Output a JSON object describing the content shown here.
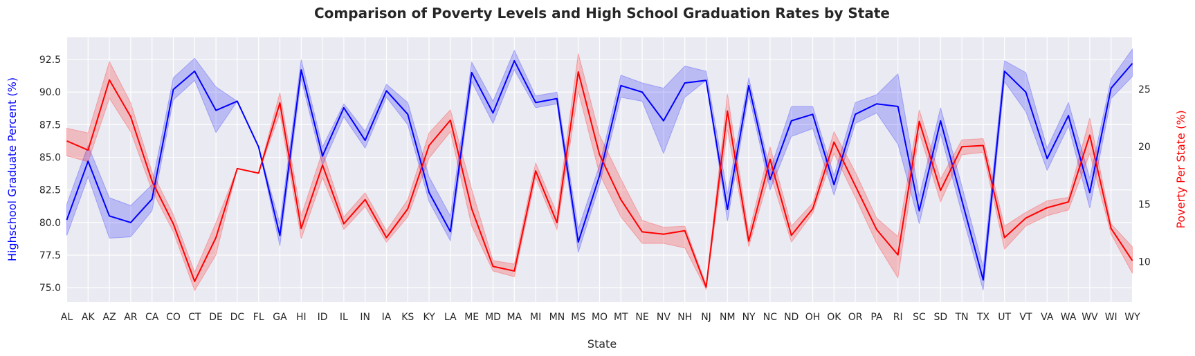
{
  "chart_data": {
    "type": "line",
    "title": "Comparison of Poverty Levels and High School Graduation Rates by State",
    "xlabel": "State",
    "ylabel_left": "Highschool Graduate Percent (%)",
    "ylabel_right": "Poverty Per State (%)",
    "ylim_left": [
      73.9,
      94.2
    ],
    "ylim_right": [
      6.5,
      29.5
    ],
    "yticks_left": [
      "75.0",
      "77.5",
      "80.0",
      "82.5",
      "85.0",
      "87.5",
      "90.0",
      "92.5"
    ],
    "yticks_right": [
      "10",
      "15",
      "20",
      "25"
    ],
    "grid": true,
    "categories": [
      "AL",
      "AK",
      "AZ",
      "AR",
      "CA",
      "CO",
      "CT",
      "DE",
      "DC",
      "FL",
      "GA",
      "HI",
      "ID",
      "IL",
      "IN",
      "IA",
      "KS",
      "KY",
      "LA",
      "ME",
      "MD",
      "MA",
      "MI",
      "MN",
      "MS",
      "MO",
      "MT",
      "NE",
      "NV",
      "NH",
      "NJ",
      "NM",
      "NY",
      "NC",
      "ND",
      "OH",
      "OK",
      "OR",
      "PA",
      "RI",
      "SC",
      "SD",
      "TN",
      "TX",
      "UT",
      "VT",
      "VA",
      "WA",
      "WV",
      "WI",
      "WY"
    ],
    "series": [
      {
        "name": "Highschool Graduate Percent (%)",
        "axis": "left",
        "color": "#0000ff",
        "values": [
          80.2,
          84.7,
          80.5,
          80.0,
          81.8,
          90.2,
          91.6,
          88.6,
          89.3,
          85.8,
          79.0,
          91.7,
          85.1,
          88.8,
          86.3,
          90.1,
          88.3,
          82.3,
          79.3,
          91.5,
          88.4,
          92.4,
          89.2,
          89.5,
          78.5,
          83.6,
          90.5,
          90.0,
          87.8,
          90.7,
          90.9,
          81.0,
          90.5,
          83.3,
          87.8,
          88.3,
          82.9,
          88.3,
          89.1,
          88.9,
          80.9,
          87.8,
          81.7,
          75.6,
          91.6,
          90.0,
          84.9,
          88.2,
          82.3,
          90.3,
          92.2
        ],
        "lower": [
          79.0,
          83.5,
          78.8,
          78.9,
          80.9,
          89.4,
          90.9,
          86.9,
          89.3,
          85.8,
          78.2,
          91.0,
          84.4,
          88.1,
          85.7,
          89.6,
          87.5,
          81.6,
          78.6,
          90.8,
          87.6,
          91.7,
          88.8,
          89.1,
          77.7,
          82.9,
          89.6,
          89.3,
          85.3,
          89.6,
          90.9,
          80.1,
          89.8,
          82.5,
          86.6,
          87.2,
          82.1,
          87.6,
          88.4,
          86.0,
          79.9,
          86.8,
          80.7,
          74.8,
          90.8,
          88.5,
          84.0,
          87.4,
          81.1,
          89.5,
          91.2
        ],
        "upper": [
          81.4,
          85.9,
          81.9,
          81.3,
          82.9,
          91.1,
          92.6,
          90.4,
          89.3,
          85.8,
          79.9,
          92.5,
          85.8,
          89.1,
          87.0,
          90.6,
          89.2,
          83.5,
          80.5,
          92.3,
          89.3,
          93.2,
          89.7,
          90.0,
          79.5,
          84.4,
          91.3,
          90.7,
          90.3,
          92.0,
          91.6,
          82.2,
          91.1,
          84.0,
          88.9,
          88.9,
          83.6,
          89.2,
          89.8,
          91.4,
          82.0,
          88.8,
          82.8,
          76.6,
          92.4,
          91.5,
          85.7,
          89.2,
          83.4,
          91.0,
          93.3
        ]
      },
      {
        "name": "Poverty Per State (%)",
        "axis": "right",
        "color": "#ff0000",
        "values": [
          20.5,
          19.7,
          25.8,
          22.6,
          17.0,
          13.3,
          8.3,
          12.1,
          18.1,
          17.7,
          23.8,
          12.9,
          18.4,
          13.3,
          15.4,
          12.1,
          14.6,
          20.1,
          22.3,
          14.6,
          9.6,
          9.2,
          17.9,
          13.4,
          26.5,
          19.3,
          15.4,
          12.6,
          12.4,
          12.7,
          7.8,
          23.1,
          11.8,
          18.9,
          12.3,
          14.6,
          20.4,
          16.6,
          12.8,
          10.6,
          22.2,
          16.2,
          20.0,
          20.1,
          12.1,
          13.8,
          14.7,
          15.2,
          21.0,
          12.9,
          10.1
        ],
        "lower": [
          19.2,
          18.7,
          24.2,
          21.3,
          16.2,
          12.6,
          7.5,
          10.6,
          18.1,
          17.7,
          22.9,
          12.0,
          17.3,
          12.8,
          14.8,
          11.7,
          13.9,
          19.0,
          21.3,
          13.1,
          9.2,
          8.7,
          17.3,
          12.8,
          24.8,
          17.6,
          13.9,
          11.6,
          11.6,
          11.2,
          7.6,
          21.5,
          11.3,
          17.7,
          11.7,
          14.2,
          19.4,
          15.6,
          11.6,
          8.6,
          21.2,
          15.2,
          19.3,
          19.5,
          11.1,
          13.1,
          14.0,
          14.5,
          19.4,
          12.4,
          9.0
        ],
        "upper": [
          21.6,
          21.2,
          27.4,
          23.8,
          17.8,
          14.1,
          9.1,
          13.4,
          18.1,
          17.7,
          24.7,
          14.0,
          19.6,
          13.9,
          16.0,
          12.7,
          15.4,
          21.2,
          23.2,
          16.3,
          10.1,
          9.8,
          18.6,
          14.2,
          28.1,
          21.0,
          17.2,
          13.6,
          13.0,
          13.1,
          8.0,
          24.6,
          12.5,
          20.0,
          13.1,
          15.1,
          21.3,
          17.8,
          13.8,
          12.2,
          23.2,
          17.2,
          20.6,
          20.7,
          13.1,
          14.3,
          15.3,
          15.6,
          22.5,
          13.3,
          11.3
        ]
      }
    ]
  }
}
